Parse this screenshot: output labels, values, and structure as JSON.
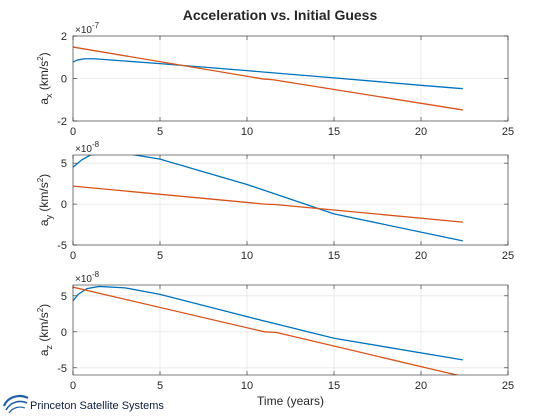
{
  "title": "Acceleration vs. Initial Guess",
  "footer_text": "Princeton Satellite Systems",
  "colors": {
    "series1": "#0072BD",
    "series2": "#D95319",
    "grid": "#e6e6e6",
    "axis": "#262626",
    "logo": "#1f5fa8"
  },
  "chart_data": [
    {
      "type": "line",
      "title": "Acceleration vs. Initial Guess",
      "xlabel": "",
      "ylabel_main": "a",
      "ylabel_sub": "x",
      "ylabel_units": "(km/s",
      "ylabel_sup": "2",
      "exponent_base": "×10",
      "exponent": "-7",
      "xlim": [
        0,
        25
      ],
      "ylim": [
        -2,
        2
      ],
      "xticks": [
        0,
        5,
        10,
        15,
        20,
        25
      ],
      "yticks": [
        -2,
        0,
        2
      ],
      "ytick_labels": [
        "-2",
        "0",
        "2"
      ],
      "grid": true,
      "series": [
        {
          "x": [
            0,
            0.3,
            0.7,
            1.2,
            5,
            10,
            15,
            20,
            22.4
          ],
          "values": [
            0.78,
            0.88,
            0.93,
            0.93,
            0.7,
            0.37,
            0.03,
            -0.32,
            -0.48
          ]
        },
        {
          "x": [
            0,
            10.9,
            11.5,
            22.4
          ],
          "values": [
            1.48,
            -0.02,
            -0.06,
            -1.48
          ]
        }
      ]
    },
    {
      "type": "line",
      "xlabel": "",
      "ylabel_main": "a",
      "ylabel_sub": "y",
      "ylabel_units": "(km/s",
      "ylabel_sup": "2",
      "exponent_base": "×10",
      "exponent": "-8",
      "xlim": [
        0,
        25
      ],
      "ylim": [
        -5,
        6
      ],
      "xticks": [
        0,
        5,
        10,
        15,
        20,
        25
      ],
      "yticks": [
        -5,
        0,
        5
      ],
      "ytick_labels": [
        "-5",
        "0",
        "5"
      ],
      "grid": true,
      "series": [
        {
          "x": [
            0,
            0.5,
            1,
            1.8,
            3,
            5,
            10,
            15,
            22.4
          ],
          "values": [
            4.5,
            5.4,
            6.0,
            6.2,
            6.2,
            5.5,
            2.4,
            -1.2,
            -4.5
          ]
        },
        {
          "x": [
            0,
            11,
            11.6,
            22.4
          ],
          "values": [
            2.2,
            0,
            -0.05,
            -2.2
          ]
        }
      ]
    },
    {
      "type": "line",
      "xlabel": "Time (years)",
      "ylabel_main": "a",
      "ylabel_sub": "z",
      "ylabel_units": "(km/s",
      "ylabel_sup": "2",
      "exponent_base": "×10",
      "exponent": "-8",
      "xlim": [
        0,
        25
      ],
      "ylim": [
        -6,
        6.5
      ],
      "xticks": [
        0,
        5,
        10,
        15,
        20,
        25
      ],
      "yticks": [
        -5,
        0,
        5
      ],
      "ytick_labels": [
        "-5",
        "0",
        "5"
      ],
      "grid": true,
      "series": [
        {
          "x": [
            0,
            0.3,
            0.8,
            1.5,
            3,
            5,
            10,
            15,
            22.4
          ],
          "values": [
            4.3,
            5.2,
            6.0,
            6.3,
            6.1,
            5.2,
            2.1,
            -0.9,
            -3.9
          ]
        },
        {
          "x": [
            0,
            11,
            11.7,
            22.4
          ],
          "values": [
            6.2,
            0,
            -0.1,
            -6.2
          ]
        }
      ]
    }
  ]
}
